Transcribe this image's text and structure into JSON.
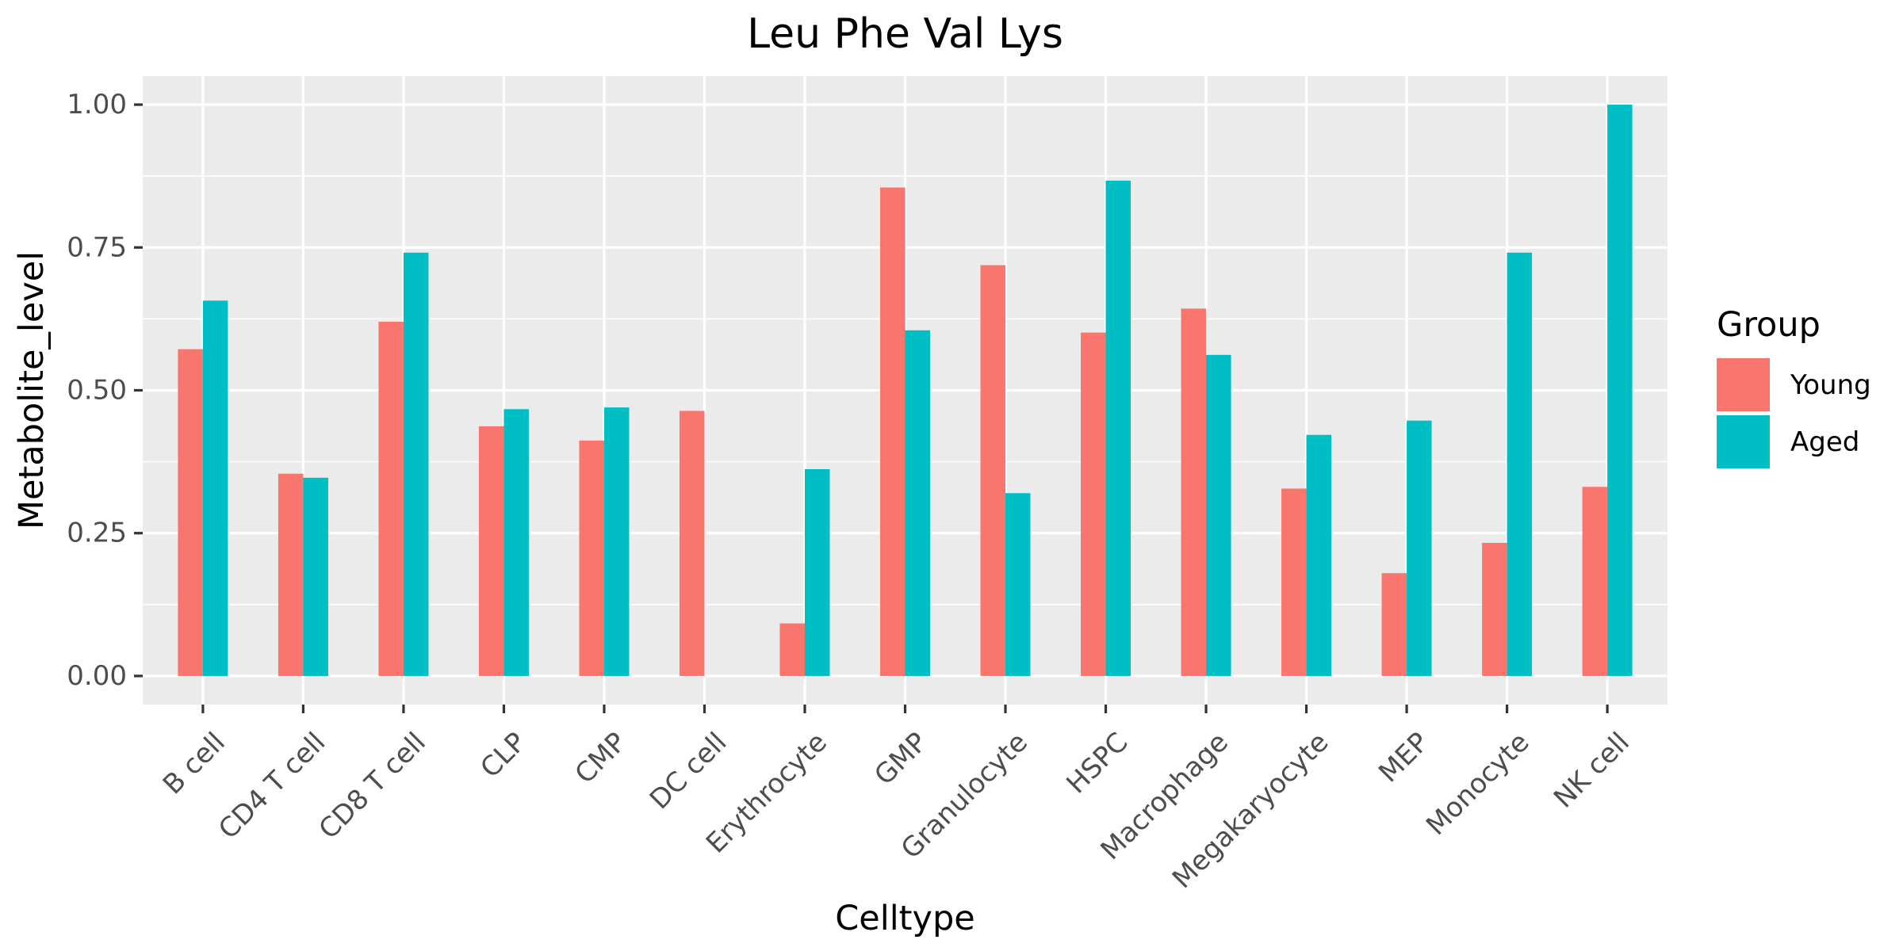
{
  "chart_data": {
    "type": "bar",
    "title": "Leu Phe Val Lys",
    "xlabel": "Celltype",
    "ylabel": "Metabolite_level",
    "ylim": [
      -0.05,
      1.05
    ],
    "yticks": [
      0.0,
      0.25,
      0.5,
      0.75,
      1.0
    ],
    "ytick_labels": [
      "0.00",
      "0.25",
      "0.50",
      "0.75",
      "1.00"
    ],
    "categories": [
      "B cell",
      "CD4 T cell",
      "CD8 T cell",
      "CLP",
      "CMP",
      "DC cell",
      "Erythrocyte",
      "GMP",
      "Granulocyte",
      "HSPC",
      "Macrophage",
      "Megakaryocyte",
      "MEP",
      "Monocyte",
      "NK cell"
    ],
    "series": [
      {
        "name": "Young",
        "color": "#F8766D",
        "values": [
          0.572,
          0.354,
          0.62,
          0.437,
          0.412,
          0.464,
          0.092,
          0.855,
          0.719,
          0.601,
          0.643,
          0.328,
          0.18,
          0.233,
          0.331
        ]
      },
      {
        "name": "Aged",
        "color": "#00BFC4",
        "values": [
          0.657,
          0.347,
          0.741,
          0.467,
          0.47,
          null,
          0.362,
          0.605,
          0.32,
          0.867,
          0.562,
          0.422,
          0.447,
          0.741,
          1.0
        ]
      }
    ],
    "legend": {
      "title": "Group",
      "position": "right"
    },
    "grid": true,
    "colors": {
      "panel_background": "#EBEBEB",
      "grid_line": "#FFFFFF",
      "tick_mark": "#333333",
      "tick_text": "#4D4D4D"
    }
  }
}
